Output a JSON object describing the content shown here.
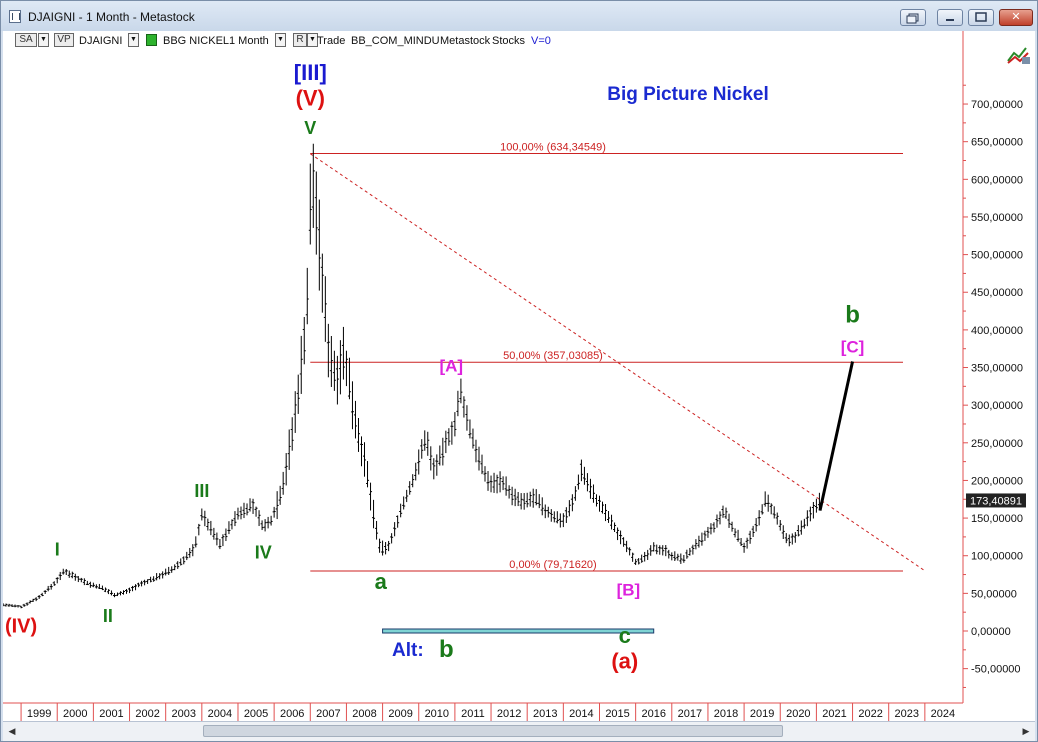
{
  "window": {
    "title": "DJAIGNI - 1 Month - Metastock",
    "buttons": {
      "close": "✕"
    }
  },
  "toolbar": {
    "sa_label": "SA",
    "vp_label": "VP",
    "symbol": "DJAIGNI",
    "instrument": "BBG NICKEL",
    "period": "1 Month",
    "r_label": "R",
    "trade_label": "Trade",
    "source": "BB_COM_MINDU",
    "vendor": "Metastock",
    "kind": "Stocks",
    "volume": "V=0"
  },
  "chart_data": {
    "type": "ohlc",
    "title": "Big Picture Nickel",
    "x_start_year": 1998.5,
    "x_end_year": 2025.0,
    "x_ticks": [
      "1999",
      "2000",
      "2001",
      "2002",
      "2003",
      "2004",
      "2005",
      "2006",
      "2007",
      "2008",
      "2009",
      "2010",
      "2011",
      "2012",
      "2013",
      "2014",
      "2015",
      "2016",
      "2017",
      "2018",
      "2019",
      "2020",
      "2021",
      "2022",
      "2023",
      "2024"
    ],
    "ylim": [
      -60,
      780
    ],
    "y_ticks": [
      "-50,00000",
      "0,00000",
      "50,00000",
      "100,00000",
      "150,00000",
      "200,00000",
      "250,00000",
      "300,00000",
      "350,00000",
      "400,00000",
      "450,00000",
      "500,00000",
      "550,00000",
      "600,00000",
      "650,00000",
      "700,00000"
    ],
    "y_tick_values": [
      -50,
      0,
      50,
      100,
      150,
      200,
      250,
      300,
      350,
      400,
      450,
      500,
      550,
      600,
      650,
      700
    ],
    "last_price_label": "173,40891",
    "last_price": 173.41,
    "price_path": [
      [
        1998.5,
        35
      ],
      [
        1999.0,
        32
      ],
      [
        1999.5,
        45
      ],
      [
        1999.9,
        62
      ],
      [
        2000.2,
        80
      ],
      [
        2000.5,
        72
      ],
      [
        2000.9,
        62
      ],
      [
        2001.2,
        58
      ],
      [
        2001.6,
        48
      ],
      [
        2001.9,
        52
      ],
      [
        2002.3,
        62
      ],
      [
        2002.6,
        68
      ],
      [
        2002.9,
        75
      ],
      [
        2003.2,
        82
      ],
      [
        2003.5,
        95
      ],
      [
        2003.8,
        110
      ],
      [
        2004.0,
        155
      ],
      [
        2004.3,
        132
      ],
      [
        2004.5,
        115
      ],
      [
        2004.8,
        140
      ],
      [
        2005.0,
        155
      ],
      [
        2005.4,
        168
      ],
      [
        2005.7,
        138
      ],
      [
        2005.9,
        145
      ],
      [
        2006.2,
        185
      ],
      [
        2006.5,
        260
      ],
      [
        2006.7,
        330
      ],
      [
        2006.9,
        420
      ],
      [
        2007.0,
        560
      ],
      [
        2007.1,
        600
      ],
      [
        2007.3,
        480
      ],
      [
        2007.5,
        380
      ],
      [
        2007.7,
        335
      ],
      [
        2007.9,
        370
      ],
      [
        2008.1,
        325
      ],
      [
        2008.3,
        270
      ],
      [
        2008.6,
        200
      ],
      [
        2008.8,
        140
      ],
      [
        2008.95,
        105
      ],
      [
        2009.2,
        115
      ],
      [
        2009.5,
        160
      ],
      [
        2009.8,
        195
      ],
      [
        2010.0,
        225
      ],
      [
        2010.2,
        260
      ],
      [
        2010.4,
        215
      ],
      [
        2010.6,
        230
      ],
      [
        2010.8,
        255
      ],
      [
        2011.0,
        275
      ],
      [
        2011.15,
        318
      ],
      [
        2011.4,
        270
      ],
      [
        2011.6,
        240
      ],
      [
        2011.8,
        210
      ],
      [
        2012.0,
        195
      ],
      [
        2012.3,
        200
      ],
      [
        2012.6,
        178
      ],
      [
        2012.9,
        170
      ],
      [
        2013.2,
        178
      ],
      [
        2013.5,
        160
      ],
      [
        2013.8,
        150
      ],
      [
        2014.0,
        148
      ],
      [
        2014.3,
        175
      ],
      [
        2014.5,
        215
      ],
      [
        2014.7,
        195
      ],
      [
        2014.9,
        175
      ],
      [
        2015.2,
        155
      ],
      [
        2015.5,
        130
      ],
      [
        2015.8,
        110
      ],
      [
        2016.0,
        92
      ],
      [
        2016.2,
        95
      ],
      [
        2016.5,
        110
      ],
      [
        2016.8,
        108
      ],
      [
        2017.0,
        100
      ],
      [
        2017.3,
        95
      ],
      [
        2017.6,
        110
      ],
      [
        2017.9,
        125
      ],
      [
        2018.2,
        140
      ],
      [
        2018.45,
        160
      ],
      [
        2018.7,
        135
      ],
      [
        2019.0,
        112
      ],
      [
        2019.3,
        135
      ],
      [
        2019.6,
        175
      ],
      [
        2019.9,
        150
      ],
      [
        2020.2,
        118
      ],
      [
        2020.4,
        125
      ],
      [
        2020.7,
        145
      ],
      [
        2021.0,
        168
      ],
      [
        2021.1,
        173
      ]
    ],
    "fib_levels": [
      {
        "label": "100,00% (634,34549)",
        "value": 634.35
      },
      {
        "label": "50,00% (357,03085)",
        "value": 357.03
      },
      {
        "label": "0,00% (79,71620)",
        "value": 79.72
      }
    ],
    "trendline": {
      "x1": 2007.0,
      "y1": 634,
      "x2": 2024.0,
      "y2": 80
    },
    "projection": {
      "x1": 2021.1,
      "y1": 160,
      "x2": 2022.0,
      "y2": 358
    },
    "alt_band": {
      "x1": 2009.0,
      "x2": 2016.5,
      "y": 0
    },
    "wave_labels": [
      {
        "text": "[III]",
        "x": 2007.0,
        "y": 732,
        "color": "#1a1ad0",
        "size": 22
      },
      {
        "text": "(V)",
        "x": 2007.0,
        "y": 698,
        "color": "#dd1111",
        "size": 22
      },
      {
        "text": "V",
        "x": 2007.0,
        "y": 660,
        "color": "#1a7a1a",
        "size": 18
      },
      {
        "text": "I",
        "x": 2000.0,
        "y": 100,
        "color": "#1a7a1a",
        "size": 18
      },
      {
        "text": "II",
        "x": 2001.4,
        "y": 12,
        "color": "#1a7a1a",
        "size": 18
      },
      {
        "text": "III",
        "x": 2004.0,
        "y": 178,
        "color": "#1a7a1a",
        "size": 18
      },
      {
        "text": "IV",
        "x": 2005.7,
        "y": 96,
        "color": "#1a7a1a",
        "size": 18
      },
      {
        "text": "(IV)",
        "x": 1999.0,
        "y": -2,
        "color": "#dd1111",
        "size": 20
      },
      {
        "text": "a",
        "x": 2008.95,
        "y": 56,
        "color": "#1a7a1a",
        "size": 22
      },
      {
        "text": "[A]",
        "x": 2010.9,
        "y": 345,
        "color": "#dd22dd",
        "size": 17
      },
      {
        "text": "[B]",
        "x": 2015.8,
        "y": 47,
        "color": "#dd22dd",
        "size": 17
      },
      {
        "text": "c",
        "x": 2015.7,
        "y": -16,
        "color": "#1a7a1a",
        "size": 22
      },
      {
        "text": "(a)",
        "x": 2015.7,
        "y": -50,
        "color": "#dd1111",
        "size": 22
      },
      {
        "text": "b",
        "x": 2022.0,
        "y": 410,
        "color": "#1a7a1a",
        "size": 24
      },
      {
        "text": "[C]",
        "x": 2022.0,
        "y": 370,
        "color": "#dd22dd",
        "size": 17
      }
    ],
    "alt_label": "Alt:",
    "alt_wave": "b"
  }
}
